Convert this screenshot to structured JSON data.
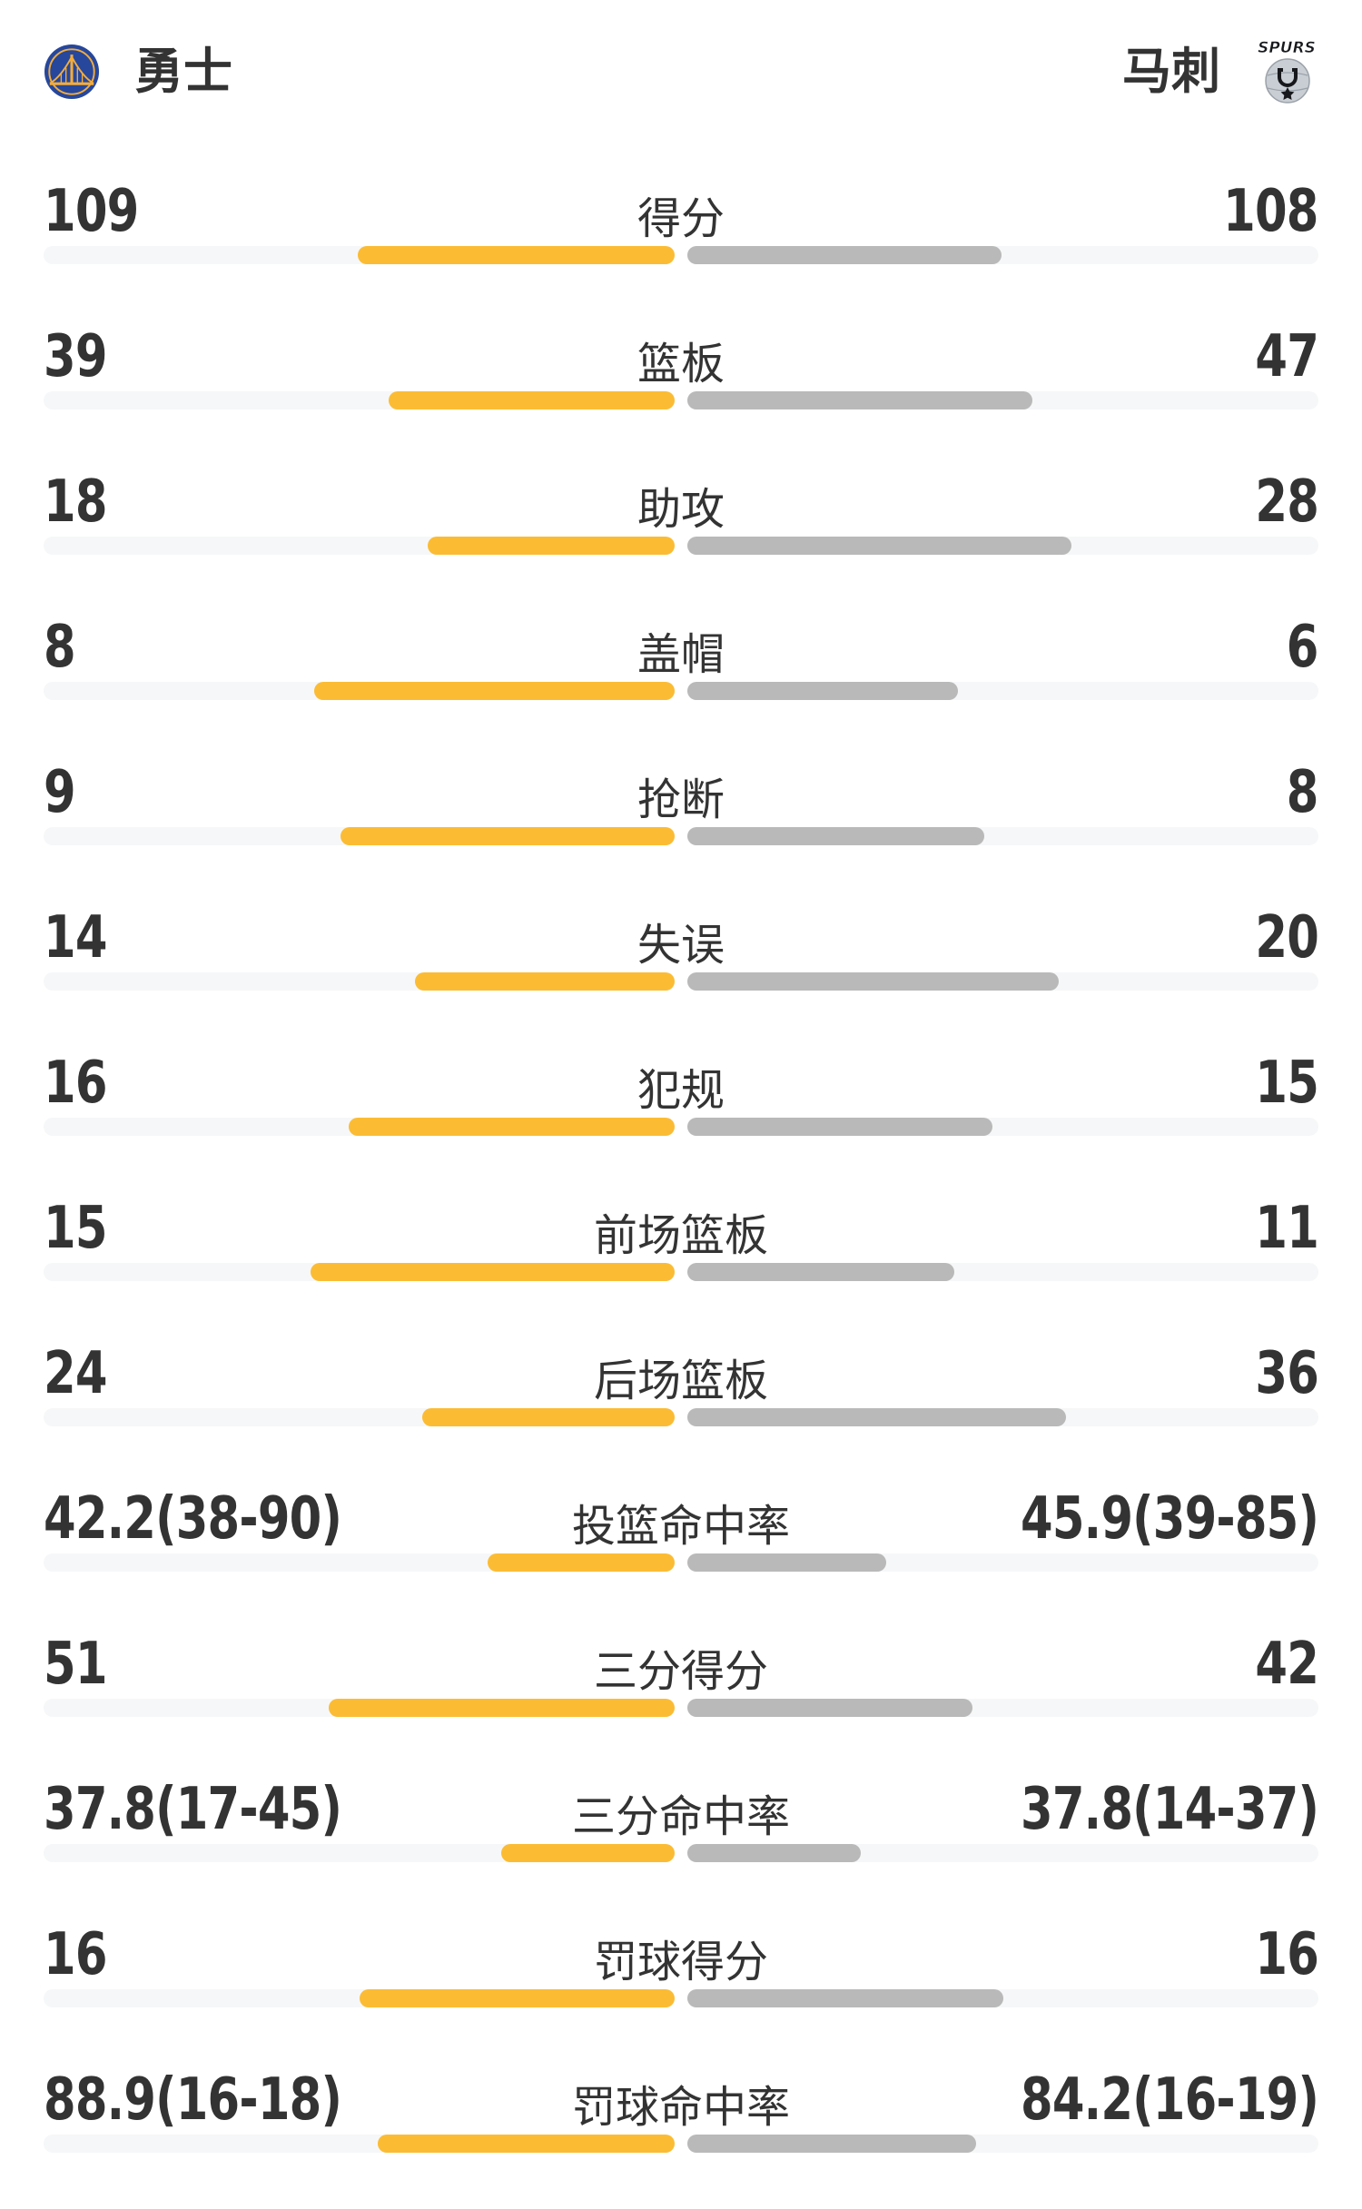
{
  "page": {
    "background": "#FFFFFF"
  },
  "header": {
    "left_team": {
      "name": "勇士"
    },
    "right_team": {
      "name": "马刺"
    },
    "spurs_wordmark": "SPURS"
  },
  "colors": {
    "left_fill": "#FBBC34",
    "right_fill": "#B9B9B9",
    "bar_track": "#F6F7F8",
    "text": "#333333",
    "warriors_blue": "#26479B",
    "warriors_gold": "#F3AC3C",
    "spurs_silver": "#C9CED4",
    "spurs_black": "#16181B"
  },
  "chart_data": {
    "type": "bar",
    "subtype": "mirrored-team-comparison",
    "title": "勇士 vs 马刺",
    "legend_position": "none",
    "grid": false,
    "categories": [
      "得分",
      "篮板",
      "助攻",
      "盖帽",
      "抢断",
      "失误",
      "犯规",
      "前场篮板",
      "后场篮板",
      "投篮命中率",
      "三分得分",
      "三分命中率",
      "罚球得分",
      "罚球命中率"
    ],
    "series": [
      {
        "name": "勇士",
        "side": "left",
        "color": "#FBBC34",
        "values": [
          109,
          39,
          18,
          8,
          9,
          14,
          16,
          15,
          24,
          42.2,
          51,
          37.8,
          16,
          88.9
        ],
        "display": [
          "109",
          "39",
          "18",
          "8",
          "9",
          "14",
          "16",
          "15",
          "24",
          "42.2(38-90)",
          "51",
          "37.8(17-45)",
          "16",
          "88.9(16-18)"
        ]
      },
      {
        "name": "马刺",
        "side": "right",
        "color": "#B9B9B9",
        "values": [
          108,
          47,
          28,
          6,
          8,
          20,
          15,
          11,
          36,
          45.9,
          42,
          37.8,
          16,
          84.2
        ],
        "display": [
          "108",
          "47",
          "28",
          "6",
          "8",
          "20",
          "15",
          "11",
          "36",
          "45.9(39-85)",
          "42",
          "37.8(14-37)",
          "16",
          "84.2(16-19)"
        ]
      }
    ],
    "fill_rule": "count rows: v/(vLeft+vRight) of half-track; percent rows: pct/(pct+100)"
  }
}
